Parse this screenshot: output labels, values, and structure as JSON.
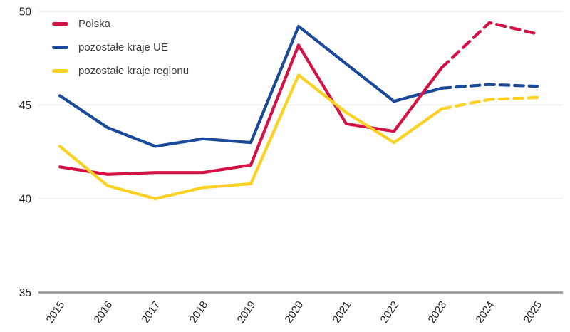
{
  "chart_data": {
    "type": "line",
    "title": "",
    "xlabel": "",
    "ylabel": "",
    "x_categories": [
      "2015",
      "2016",
      "2017",
      "2018",
      "2019",
      "2020",
      "2021",
      "2022",
      "2023",
      "2024",
      "2025"
    ],
    "y_ticks": [
      35,
      40,
      45,
      50
    ],
    "ylim": [
      35,
      50
    ],
    "grid": "horizontal",
    "legend_position": "top-left",
    "dashed_from_index": 8,
    "dashed_note": "solid lines 2015-2023, dashed forecast 2023-2025",
    "series": [
      {
        "name": "Polska",
        "color": "#D41245",
        "values": [
          41.7,
          41.3,
          41.4,
          41.4,
          41.8,
          48.2,
          44.0,
          43.6,
          47.0,
          49.4,
          48.8
        ]
      },
      {
        "name": "pozostałe kraje UE",
        "color": "#1B4A9B",
        "values": [
          45.5,
          43.8,
          42.8,
          43.2,
          43.0,
          49.2,
          47.2,
          45.2,
          45.9,
          46.1,
          46.0
        ]
      },
      {
        "name": "pozostałe kraje regionu",
        "color": "#FDD021",
        "values": [
          42.8,
          40.7,
          40.0,
          40.6,
          40.8,
          46.6,
          44.6,
          43.0,
          44.8,
          45.3,
          45.4
        ]
      }
    ]
  },
  "colors": {
    "background": "#FFFFFF",
    "grid": "#E8E8E8",
    "axis": "#949494",
    "tick_text": "#1F1F1F",
    "legend_text": "#3D3D3D"
  }
}
